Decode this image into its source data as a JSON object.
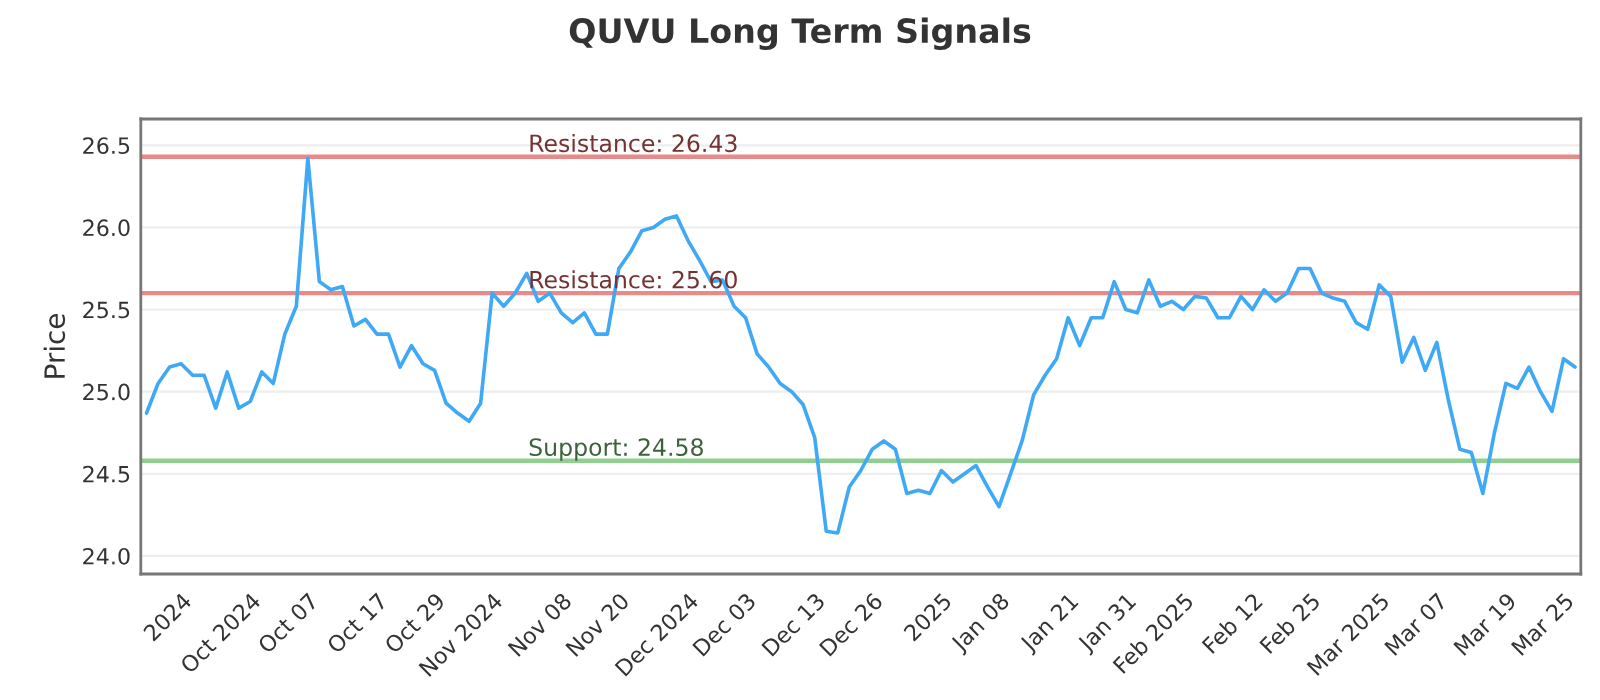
{
  "chart_data": {
    "type": "line",
    "title": "QUVU Long Term Signals",
    "ylabel": "Price",
    "categories": [
      null,
      null,
      null,
      "2024",
      null,
      null,
      null,
      null,
      null,
      "Oct 2024",
      null,
      null,
      null,
      null,
      "Oct 07",
      null,
      null,
      null,
      null,
      null,
      "Oct 17",
      null,
      null,
      null,
      null,
      "Oct 29",
      null,
      null,
      null,
      null,
      "Nov 2024",
      null,
      null,
      null,
      null,
      null,
      "Nov 08",
      null,
      null,
      null,
      null,
      "Nov 20",
      null,
      null,
      null,
      null,
      null,
      "Dec 2024",
      null,
      null,
      null,
      null,
      "Dec 03",
      null,
      null,
      null,
      null,
      null,
      "Dec 13",
      null,
      null,
      null,
      null,
      "Dec 26",
      null,
      null,
      null,
      null,
      null,
      "2025",
      null,
      null,
      null,
      null,
      "Jan 08",
      null,
      null,
      null,
      null,
      null,
      "Jan 21",
      null,
      null,
      null,
      null,
      "Jan 31",
      null,
      null,
      null,
      null,
      "Feb 2025",
      null,
      null,
      null,
      null,
      null,
      "Feb 12",
      null,
      null,
      null,
      null,
      "Feb 25",
      null,
      null,
      null,
      null,
      null,
      "Mar 2025",
      null,
      null,
      null,
      null,
      "Mar 07",
      null,
      null,
      null,
      null,
      null,
      "Mar 19",
      null,
      null,
      null,
      null,
      "Mar 25",
      null
    ],
    "series": [
      {
        "color": "#3fa9f5",
        "values": [
          24.87,
          25.05,
          25.15,
          25.17,
          25.1,
          25.1,
          24.9,
          25.12,
          24.9,
          24.94,
          25.12,
          25.05,
          25.35,
          25.52,
          26.42,
          25.67,
          25.62,
          25.64,
          25.4,
          25.44,
          25.35,
          25.35,
          25.15,
          25.28,
          25.17,
          25.13,
          24.93,
          24.87,
          24.82,
          24.93,
          25.6,
          25.52,
          25.6,
          25.72,
          25.55,
          25.6,
          25.48,
          25.42,
          25.48,
          25.35,
          25.35,
          25.75,
          25.85,
          25.98,
          26.0,
          26.05,
          26.07,
          25.92,
          25.8,
          25.67,
          25.68,
          25.52,
          25.45,
          25.23,
          25.15,
          25.05,
          25.0,
          24.92,
          24.72,
          24.15,
          24.14,
          24.42,
          24.52,
          24.65,
          24.7,
          24.65,
          24.38,
          24.4,
          24.38,
          24.52,
          24.45,
          24.5,
          24.55,
          24.42,
          24.3,
          24.5,
          24.7,
          24.98,
          25.1,
          25.2,
          25.45,
          25.28,
          25.45,
          25.45,
          25.67,
          25.5,
          25.48,
          25.68,
          25.52,
          25.55,
          25.5,
          25.58,
          25.57,
          25.45,
          25.45,
          25.58,
          25.5,
          25.62,
          25.55,
          25.6,
          25.75,
          25.75,
          25.6,
          25.57,
          25.55,
          25.42,
          25.38,
          25.65,
          25.58,
          25.18,
          25.33,
          25.13,
          25.3,
          24.95,
          24.65,
          24.63,
          24.38,
          24.75,
          25.05,
          25.02,
          25.15,
          25.0,
          24.88,
          25.2,
          25.15
        ]
      }
    ],
    "ylim": [
      23.89,
      26.66
    ],
    "yticks": [
      {
        "value": 24,
        "label": "24.0"
      },
      24.5,
      {
        "value": 25,
        "label": "25.0"
      },
      25.5,
      {
        "value": 26,
        "label": "26.0"
      },
      26.5
    ],
    "grid": "y",
    "marker": "none",
    "line_style": "solid",
    "ref_lines": [
      {
        "axis": "y",
        "value": 26.43,
        "label": "Resistance: 26.43",
        "color": "#e88a8a"
      },
      {
        "axis": "y",
        "value": 25.6,
        "label": "Resistance: 25.60",
        "color": "#e88a8a"
      },
      {
        "axis": "y",
        "value": 24.58,
        "label": "Support: 24.58",
        "color": "#8fd08f"
      }
    ]
  }
}
